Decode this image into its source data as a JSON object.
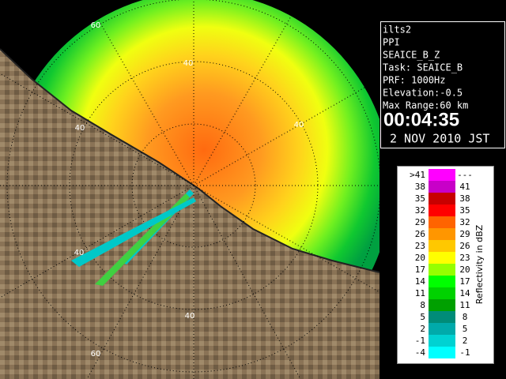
{
  "info": {
    "lines": [
      "ilts2",
      "PPI",
      "SEAICE_B_Z",
      "Task: SEAICE_B",
      "PRF: 1000Hz",
      "Elevation:-0.5",
      "Max Range:60 km"
    ],
    "time": "00:04:35",
    "date": "2 NOV 2010 JST"
  },
  "legend": {
    "title": "Reflectivity in dBZ",
    "entries": [
      {
        "low": ">41",
        "high": "---",
        "color": "#ff00ff"
      },
      {
        "low": "38",
        "high": "41",
        "color": "#c800c8"
      },
      {
        "low": "35",
        "high": "38",
        "color": "#c80000"
      },
      {
        "low": "32",
        "high": "35",
        "color": "#ff0000"
      },
      {
        "low": "29",
        "high": "32",
        "color": "#ff6400"
      },
      {
        "low": "26",
        "high": "29",
        "color": "#ff9600"
      },
      {
        "low": "23",
        "high": "26",
        "color": "#ffc800"
      },
      {
        "low": "20",
        "high": "23",
        "color": "#ffff00"
      },
      {
        "low": "17",
        "high": "20",
        "color": "#96ff00"
      },
      {
        "low": "14",
        "high": "17",
        "color": "#00ff00"
      },
      {
        "low": "11",
        "high": "14",
        "color": "#00d200"
      },
      {
        "low": "8",
        "high": "11",
        "color": "#00a000"
      },
      {
        "low": "5",
        "high": "8",
        "color": "#008c78"
      },
      {
        "low": "2",
        "high": "5",
        "color": "#00aaaa"
      },
      {
        "low": "-1",
        "high": "2",
        "color": "#00d2d2"
      },
      {
        "low": "-4",
        "high": "-1",
        "color": "#00ffff"
      }
    ]
  },
  "range_labels": [
    "60",
    "40",
    "40",
    "40",
    "40",
    "40",
    "60"
  ]
}
